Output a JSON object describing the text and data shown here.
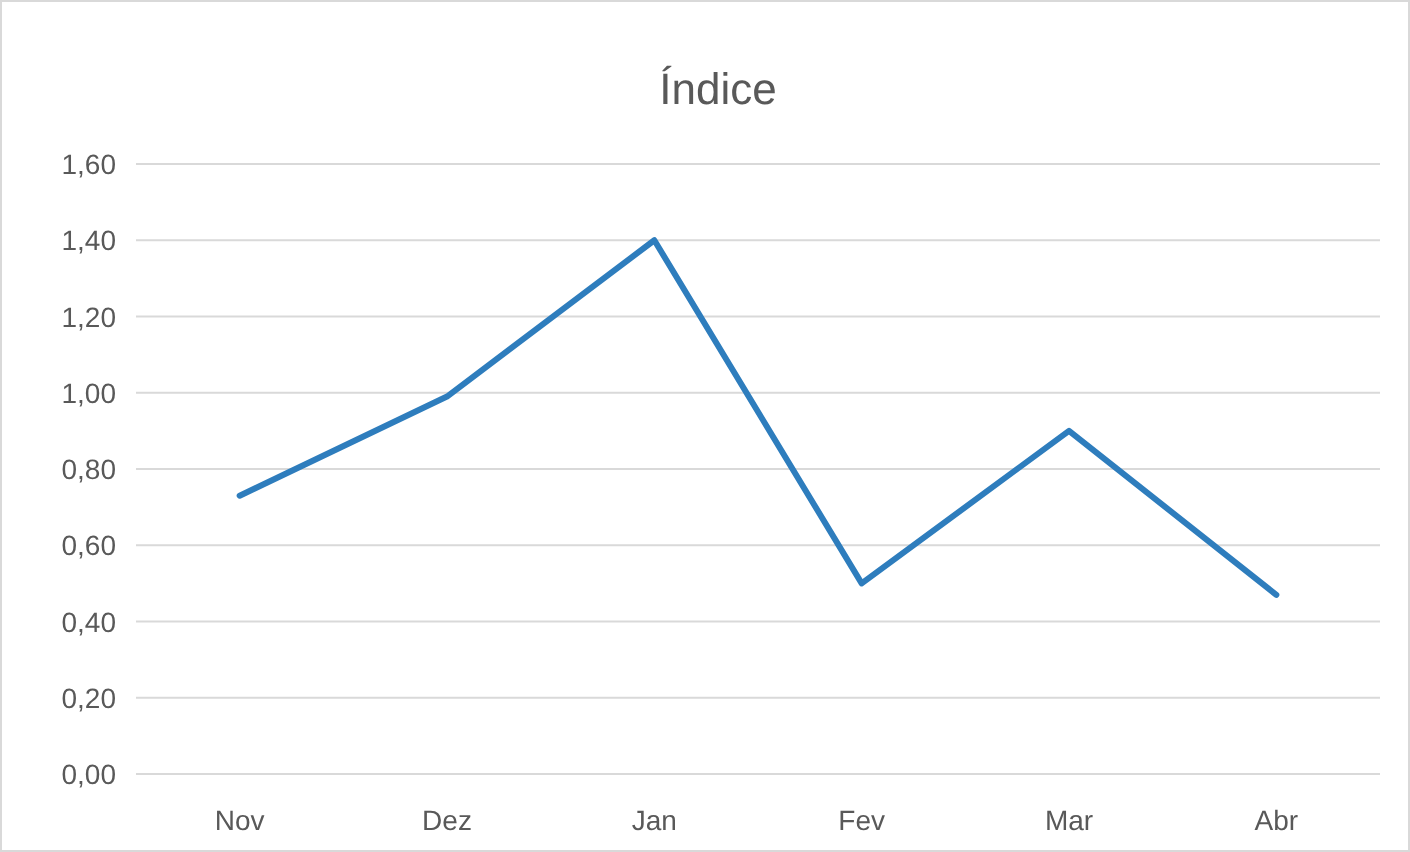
{
  "chart_data": {
    "type": "line",
    "title": "Índice",
    "categories": [
      "Nov",
      "Dez",
      "Jan",
      "Fev",
      "Mar",
      "Abr"
    ],
    "series": [
      {
        "color": "#2e7dbd",
        "values": [
          0.73,
          0.99,
          1.4,
          0.5,
          0.9,
          0.47
        ]
      }
    ],
    "ylim": [
      0,
      1.6
    ],
    "yticks": [
      {
        "value": 0,
        "label": "0,00"
      },
      {
        "value": 0.2,
        "label": "0,20"
      },
      {
        "value": 0.4,
        "label": "0,40"
      },
      {
        "value": 0.6,
        "label": "0,60"
      },
      {
        "value": 0.8,
        "label": "0,80"
      },
      {
        "value": 1.0,
        "label": "1,00"
      },
      {
        "value": 1.2,
        "label": "1,20"
      },
      {
        "value": 1.4,
        "label": "1,40"
      },
      {
        "value": 1.6,
        "label": "1,60"
      }
    ],
    "grid": "y",
    "marker": "none",
    "line_style": "solid"
  }
}
